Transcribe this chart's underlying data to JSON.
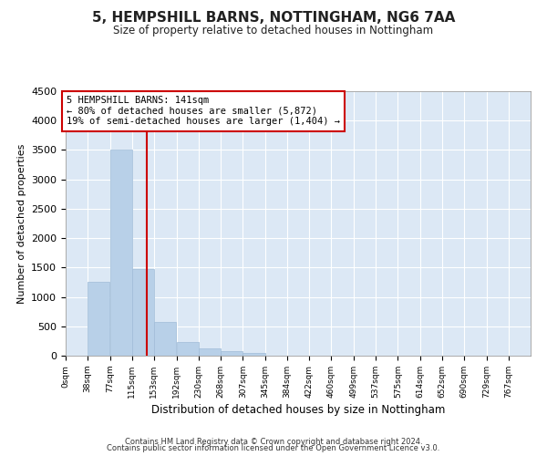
{
  "title": "5, HEMPSHILL BARNS, NOTTINGHAM, NG6 7AA",
  "subtitle": "Size of property relative to detached houses in Nottingham",
  "xlabel": "Distribution of detached houses by size in Nottingham",
  "ylabel": "Number of detached properties",
  "property_size": 141,
  "bin_width": 38,
  "bin_starts": [
    0,
    38,
    77,
    115,
    153,
    192,
    230,
    268,
    307,
    345,
    384,
    422,
    460,
    499,
    537,
    575,
    614,
    652,
    690,
    729
  ],
  "bar_heights": [
    0,
    1250,
    3500,
    1480,
    570,
    240,
    130,
    80,
    42,
    0,
    0,
    0,
    5,
    0,
    0,
    0,
    0,
    0,
    0,
    0
  ],
  "tick_labels": [
    "0sqm",
    "38sqm",
    "77sqm",
    "115sqm",
    "153sqm",
    "192sqm",
    "230sqm",
    "268sqm",
    "307sqm",
    "345sqm",
    "384sqm",
    "422sqm",
    "460sqm",
    "499sqm",
    "537sqm",
    "575sqm",
    "614sqm",
    "652sqm",
    "690sqm",
    "729sqm",
    "767sqm"
  ],
  "annotation_line1": "5 HEMPSHILL BARNS: 141sqm",
  "annotation_line2": "← 80% of detached houses are smaller (5,872)",
  "annotation_line3": "19% of semi-detached houses are larger (1,404) →",
  "bar_color": "#b8d0e8",
  "bar_edge_color": "#a0bcd8",
  "vline_color": "#cc0000",
  "annotation_box_color": "#cc0000",
  "background_color": "#dce8f5",
  "grid_color": "#ffffff",
  "ylim": [
    0,
    4500
  ],
  "yticks": [
    0,
    500,
    1000,
    1500,
    2000,
    2500,
    3000,
    3500,
    4000,
    4500
  ],
  "footer_line1": "Contains HM Land Registry data © Crown copyright and database right 2024.",
  "footer_line2": "Contains public sector information licensed under the Open Government Licence v3.0."
}
